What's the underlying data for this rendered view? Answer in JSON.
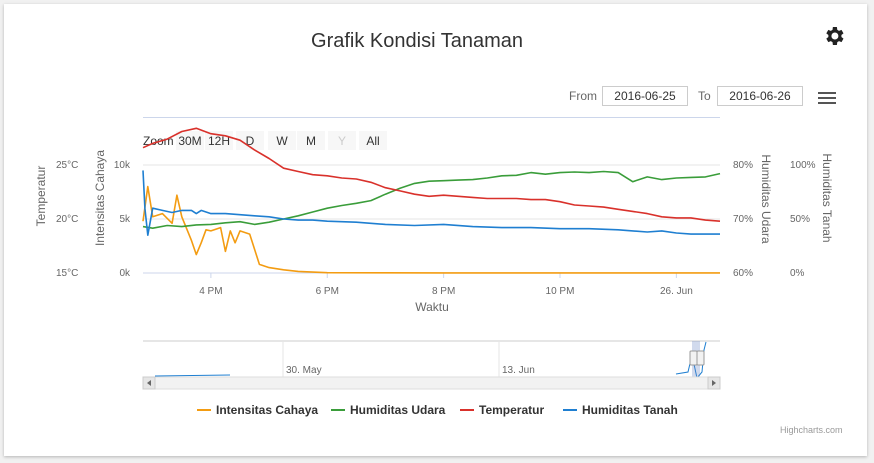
{
  "title": "Grafik Kondisi Tanaman",
  "range_selector": {
    "zoom_label": "Zoom",
    "buttons": [
      "30M",
      "12H",
      "D",
      "W",
      "M",
      "Y",
      "All"
    ],
    "from_label": "From",
    "from_value": "2016-06-25",
    "to_label": "To",
    "to_value": "2016-06-26"
  },
  "navigator": {
    "labels": [
      "30. May",
      "13. Jun"
    ]
  },
  "credits": "Highcharts.com",
  "colors": {
    "intensitas_cahaya": "#f39c12",
    "humiditas_udara": "#3a9d3a",
    "temperatur": "#d9312b",
    "humiditas_tanah": "#1f7fd1"
  },
  "chart_data": {
    "type": "line",
    "xlabel": "Waktu",
    "x_ticks": [
      "4 PM",
      "6 PM",
      "8 PM",
      "10 PM",
      "26. Jun"
    ],
    "x_range": [
      "2016-06-25 14:50",
      "2016-06-26 00:45"
    ],
    "grid": true,
    "legend_position": "bottom",
    "axes": [
      {
        "title": "Temperatur",
        "side": "left",
        "ticks": [
          "15°C",
          "20°C",
          "25°C"
        ],
        "range": [
          15,
          25
        ]
      },
      {
        "title": "Intensitas Cahaya",
        "side": "left",
        "ticks": [
          "0k",
          "5k",
          "10k"
        ],
        "range": [
          0,
          10000
        ]
      },
      {
        "title": "Humiditas Udara",
        "side": "right",
        "ticks": [
          "60%",
          "70%",
          "80%"
        ],
        "range": [
          60,
          80
        ]
      },
      {
        "title": "Humiditas Tanah",
        "side": "right",
        "ticks": [
          "0%",
          "50%",
          "100%"
        ],
        "range": [
          0,
          100
        ]
      }
    ],
    "series": [
      {
        "name": "Intensitas Cahaya",
        "axis": 1,
        "x": [
          "14:50",
          "14:55",
          "15:00",
          "15:10",
          "15:20",
          "15:25",
          "15:30",
          "15:40",
          "15:45",
          "15:50",
          "15:55",
          "16:00",
          "16:10",
          "16:15",
          "16:20",
          "16:25",
          "16:30",
          "16:40",
          "16:50",
          "17:00",
          "17:15",
          "17:30",
          "17:45",
          "18:00",
          "19:00",
          "20:00",
          "21:00",
          "22:00",
          "23:00",
          "00:00",
          "00:45"
        ],
        "values": [
          4800,
          8000,
          5200,
          5500,
          4600,
          7200,
          5200,
          3000,
          1700,
          2800,
          4000,
          3900,
          4200,
          2000,
          3900,
          2800,
          3900,
          3600,
          800,
          500,
          300,
          150,
          80,
          30,
          20,
          10,
          10,
          10,
          10,
          10,
          10
        ]
      },
      {
        "name": "Humiditas Udara",
        "axis": 2,
        "x": [
          "14:50",
          "15:00",
          "15:15",
          "15:30",
          "15:45",
          "16:00",
          "16:15",
          "16:30",
          "16:45",
          "17:00",
          "17:15",
          "17:30",
          "17:45",
          "18:00",
          "18:15",
          "18:30",
          "18:45",
          "19:00",
          "19:15",
          "19:30",
          "19:45",
          "20:00",
          "20:15",
          "20:30",
          "20:45",
          "21:00",
          "21:15",
          "21:30",
          "21:45",
          "22:00",
          "22:15",
          "22:30",
          "22:45",
          "23:00",
          "23:15",
          "23:30",
          "23:45",
          "00:00",
          "00:15",
          "00:30",
          "00:45"
        ],
        "values": [
          68.6,
          68.3,
          68.8,
          68.6,
          68.9,
          69.0,
          69.3,
          69.5,
          69.0,
          69.4,
          70.0,
          70.6,
          71.3,
          72.0,
          72.5,
          72.9,
          73.4,
          74.6,
          75.7,
          76.6,
          77.0,
          77.1,
          77.2,
          77.3,
          77.6,
          78.0,
          78.1,
          78.6,
          78.3,
          78.6,
          78.7,
          78.6,
          78.8,
          78.6,
          76.9,
          77.8,
          77.3,
          77.6,
          77.7,
          77.8,
          78.4
        ]
      },
      {
        "name": "Temperatur",
        "axis": 0,
        "x": [
          "14:50",
          "15:00",
          "15:15",
          "15:30",
          "15:45",
          "16:00",
          "16:15",
          "16:30",
          "16:45",
          "17:00",
          "17:15",
          "17:30",
          "17:45",
          "18:00",
          "18:15",
          "18:30",
          "18:45",
          "19:00",
          "19:15",
          "19:30",
          "19:45",
          "20:00",
          "20:15",
          "20:30",
          "20:45",
          "21:00",
          "21:15",
          "21:30",
          "21:45",
          "22:00",
          "22:15",
          "22:30",
          "22:45",
          "23:00",
          "23:15",
          "23:30",
          "23:45",
          "00:00",
          "00:15",
          "00:30",
          "00:45"
        ],
        "values": [
          26.6,
          27.0,
          27.4,
          28.1,
          28.4,
          27.9,
          27.7,
          27.3,
          26.4,
          25.6,
          24.7,
          24.4,
          24.1,
          24.0,
          23.8,
          23.7,
          23.4,
          22.9,
          22.6,
          22.3,
          22.1,
          22.2,
          22.1,
          22.0,
          21.9,
          21.9,
          21.9,
          21.8,
          21.8,
          21.6,
          21.3,
          21.2,
          21.1,
          20.9,
          20.7,
          20.5,
          20.2,
          20.1,
          20.1,
          19.9,
          19.8
        ]
      },
      {
        "name": "Humiditas Tanah",
        "axis": 3,
        "x": [
          "14:50",
          "14:52",
          "14:55",
          "15:00",
          "15:10",
          "15:20",
          "15:30",
          "15:40",
          "15:45",
          "15:50",
          "16:00",
          "16:15",
          "16:30",
          "16:45",
          "17:00",
          "17:15",
          "17:30",
          "17:45",
          "18:00",
          "18:30",
          "19:00",
          "19:30",
          "20:00",
          "20:30",
          "21:00",
          "21:30",
          "22:00",
          "22:30",
          "23:00",
          "23:30",
          "23:45",
          "00:00",
          "00:15",
          "00:30",
          "00:45"
        ],
        "values": [
          95,
          60,
          35,
          60,
          58,
          56,
          58,
          58,
          55,
          58,
          55,
          55,
          54,
          53,
          52,
          50,
          49,
          49,
          48,
          47,
          45,
          44,
          45,
          43,
          42,
          42,
          41,
          41,
          40,
          38,
          39,
          37,
          36,
          36,
          36
        ]
      }
    ]
  }
}
